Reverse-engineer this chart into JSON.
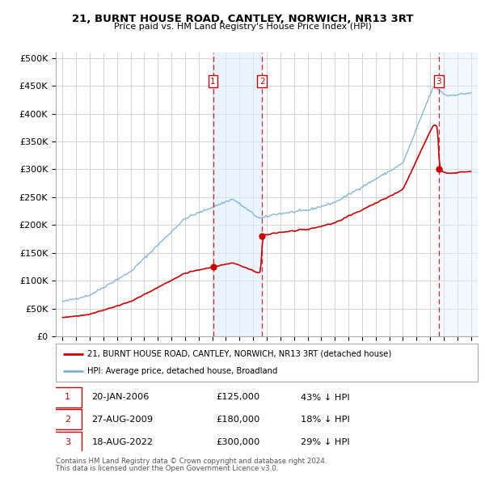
{
  "title": "21, BURNT HOUSE ROAD, CANTLEY, NORWICH, NR13 3RT",
  "subtitle": "Price paid vs. HM Land Registry's House Price Index (HPI)",
  "ylabel_ticks": [
    "£0",
    "£50K",
    "£100K",
    "£150K",
    "£200K",
    "£250K",
    "£300K",
    "£350K",
    "£400K",
    "£450K",
    "£500K"
  ],
  "ytick_values": [
    0,
    50000,
    100000,
    150000,
    200000,
    250000,
    300000,
    350000,
    400000,
    450000,
    500000
  ],
  "xlim_start": 1994.5,
  "xlim_end": 2025.5,
  "ylim_min": 0,
  "ylim_max": 510000,
  "sale_dates": [
    2006.054,
    2009.654,
    2022.626
  ],
  "sale_prices": [
    125000,
    180000,
    300000
  ],
  "sale_labels": [
    "1",
    "2",
    "3"
  ],
  "sale_hpi_pct": [
    "43% ↓ HPI",
    "18% ↓ HPI",
    "29% ↓ HPI"
  ],
  "sale_display_dates": [
    "20-JAN-2006",
    "27-AUG-2009",
    "18-AUG-2022"
  ],
  "sale_prices_display": [
    "£125,000",
    "£180,000",
    "£300,000"
  ],
  "legend_line1": "21, BURNT HOUSE ROAD, CANTLEY, NORWICH, NR13 3RT (detached house)",
  "legend_line2": "HPI: Average price, detached house, Broadland",
  "footer1": "Contains HM Land Registry data © Crown copyright and database right 2024.",
  "footer2": "This data is licensed under the Open Government Licence v3.0.",
  "hpi_color": "#7bafd4",
  "price_color": "#cc0000",
  "vline_color": "#cc0000",
  "shade_color": "#ddeeff",
  "grid_color": "#cccccc",
  "background_color": "#ffffff"
}
